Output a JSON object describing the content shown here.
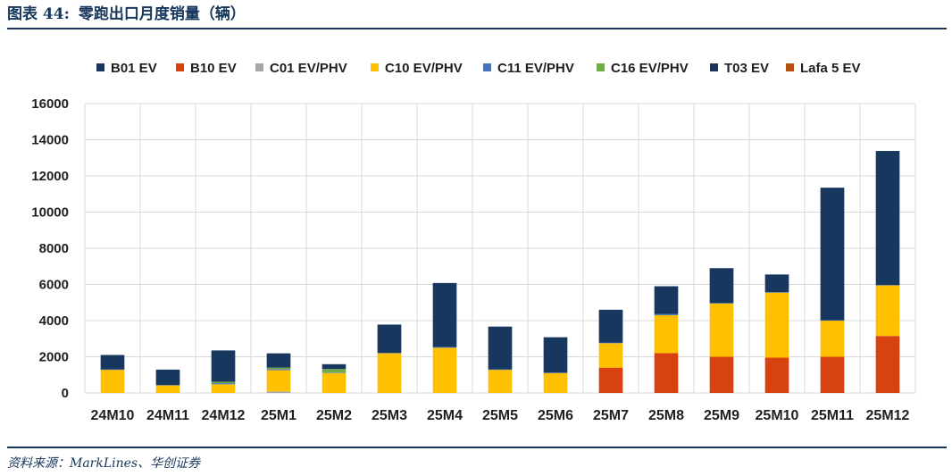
{
  "header": {
    "label": "图表 44:",
    "title": "零跑出口月度销量（辆）"
  },
  "source": "资料来源：MarkLines、华创证券",
  "chart_data": {
    "type": "bar",
    "stacked": true,
    "categories": [
      "24M10",
      "24M11",
      "24M12",
      "25M1",
      "25M2",
      "25M3",
      "25M4",
      "25M5",
      "25M6",
      "25M7",
      "25M8",
      "25M9",
      "25M10",
      "25M11",
      "25M12"
    ],
    "ylim": [
      0,
      16000
    ],
    "yticks": [
      0,
      2000,
      4000,
      6000,
      8000,
      10000,
      12000,
      14000,
      16000
    ],
    "grid": true,
    "legend_position": "top",
    "series": [
      {
        "name": "B01 EV",
        "color": "#17375e",
        "values": [
          0,
          0,
          0,
          0,
          0,
          0,
          0,
          0,
          0,
          0,
          0,
          0,
          0,
          0,
          0
        ]
      },
      {
        "name": "B10 EV",
        "color": "#d84210",
        "values": [
          0,
          0,
          0,
          0,
          0,
          0,
          0,
          0,
          0,
          1400,
          2200,
          2000,
          1950,
          2000,
          3150
        ]
      },
      {
        "name": "C01 EV/PHV",
        "color": "#a6a6a6",
        "values": [
          0,
          0,
          0,
          80,
          0,
          0,
          0,
          0,
          0,
          0,
          0,
          0,
          0,
          0,
          0
        ]
      },
      {
        "name": "C10 EV/PHV",
        "color": "#ffc000",
        "values": [
          1280,
          420,
          480,
          1180,
          1100,
          2200,
          2500,
          1280,
          1100,
          1350,
          2100,
          2950,
          3600,
          2000,
          2800
        ]
      },
      {
        "name": "C11 EV/PHV",
        "color": "#4472c4",
        "values": [
          20,
          20,
          60,
          60,
          20,
          20,
          40,
          20,
          20,
          40,
          60,
          20,
          20,
          20,
          20
        ]
      },
      {
        "name": "C16 EV/PHV",
        "color": "#70ad47",
        "values": [
          0,
          0,
          80,
          80,
          200,
          0,
          0,
          0,
          0,
          0,
          0,
          0,
          0,
          0,
          0
        ]
      },
      {
        "name": "T03 EV",
        "color": "#17375e",
        "values": [
          800,
          850,
          1730,
          790,
          270,
          1560,
          3540,
          2370,
          1960,
          1810,
          1540,
          1930,
          980,
          7330,
          7410
        ]
      },
      {
        "name": "Lafa 5 EV",
        "color": "#b5500f",
        "values": [
          0,
          0,
          0,
          0,
          0,
          0,
          0,
          0,
          0,
          0,
          0,
          0,
          0,
          0,
          0
        ]
      }
    ],
    "xlabel": "",
    "ylabel": ""
  }
}
